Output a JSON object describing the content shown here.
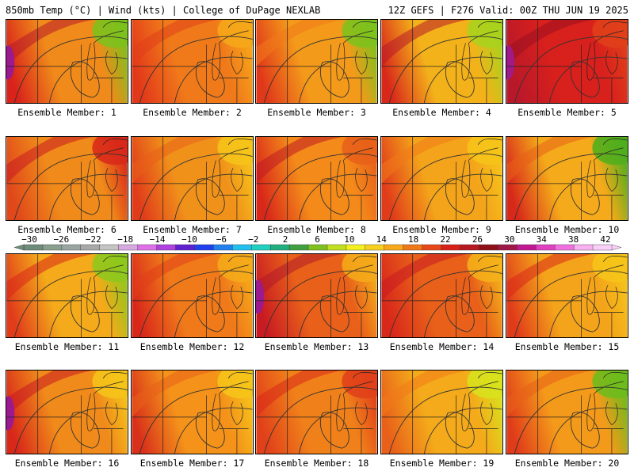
{
  "header": {
    "left": "850mb Temp (°C) | Wind (kts) | College of DuPage NEXLAB",
    "right": "12Z GEFS | F276 Valid: 00Z THU JUN 19 2025"
  },
  "label_prefix": "Ensemble Member: ",
  "members": [
    {
      "label": "Ensemble Member: 1",
      "base": "#f08a1a",
      "west": "#d8221a",
      "ne": "#7cc21c",
      "warm": "#b81a2a",
      "hot": "#9b1a90"
    },
    {
      "label": "Ensemble Member: 2",
      "base": "#f07a1a",
      "west": "#e2381a",
      "ne": "#f6a81a",
      "warm": "#e0401a",
      "hot": ""
    },
    {
      "label": "Ensemble Member: 3",
      "base": "#f49a1a",
      "west": "#e0381a",
      "ne": "#7cc21c",
      "warm": "#f07a1a",
      "hot": ""
    },
    {
      "label": "Ensemble Member: 4",
      "base": "#f4b21a",
      "west": "#d8281a",
      "ne": "#a8d21c",
      "warm": "#b81a2a",
      "hot": ""
    },
    {
      "label": "Ensemble Member: 5",
      "base": "#d8201c",
      "west": "#b8182a",
      "ne": "#e0401a",
      "warm": "#9a1020",
      "hot": "#a01a88"
    },
    {
      "label": "Ensemble Member: 6",
      "base": "#f08a1a",
      "west": "#e0481a",
      "ne": "#d8281a",
      "warm": "#c81a22",
      "hot": ""
    },
    {
      "label": "Ensemble Member: 7",
      "base": "#f0921a",
      "west": "#e03c1a",
      "ne": "#f6c41a",
      "warm": "#e8601a",
      "hot": ""
    },
    {
      "label": "Ensemble Member: 8",
      "base": "#f48a1a",
      "west": "#d8281a",
      "ne": "#e8601a",
      "warm": "#c01a22",
      "hot": ""
    },
    {
      "label": "Ensemble Member: 9",
      "base": "#f4a41a",
      "west": "#e03c1a",
      "ne": "#f6c41a",
      "warm": "#f07a1a",
      "hot": ""
    },
    {
      "label": "Ensemble Member: 10",
      "base": "#f4aa1a",
      "west": "#d8281a",
      "ne": "#4fae1c",
      "warm": "#e8601a",
      "hot": ""
    },
    {
      "label": "Ensemble Member: 11",
      "base": "#f4aa1a",
      "west": "#e03c1a",
      "ne": "#8ec81c",
      "warm": "#d8281a",
      "hot": ""
    },
    {
      "label": "Ensemble Member: 12",
      "base": "#f07a1a",
      "west": "#d8281a",
      "ne": "#f4aa1a",
      "warm": "#e0401a",
      "hot": ""
    },
    {
      "label": "Ensemble Member: 13",
      "base": "#e8601a",
      "west": "#c81a22",
      "ne": "#f4aa1a",
      "warm": "#b01a2a",
      "hot": "#9b1a90"
    },
    {
      "label": "Ensemble Member: 14",
      "base": "#e8601a",
      "west": "#d8281a",
      "ne": "#f4b21a",
      "warm": "#c81a22",
      "hot": ""
    },
    {
      "label": "Ensemble Member: 15",
      "base": "#f4a41a",
      "west": "#e03c1a",
      "ne": "#f6c41a",
      "warm": "#d8281a",
      "hot": ""
    },
    {
      "label": "Ensemble Member: 16",
      "base": "#f08a1a",
      "west": "#d8281a",
      "ne": "#f6c41a",
      "warm": "#c81a22",
      "hot": "#9b1a90"
    },
    {
      "label": "Ensemble Member: 17",
      "base": "#f4921a",
      "west": "#d8301a",
      "ne": "#f6c41a",
      "warm": "#e8601a",
      "hot": ""
    },
    {
      "label": "Ensemble Member: 18",
      "base": "#f0801a",
      "west": "#e0401a",
      "ne": "#e0401a",
      "warm": "#d8281a",
      "hot": ""
    },
    {
      "label": "Ensemble Member: 19",
      "base": "#f4aa1a",
      "west": "#e8601a",
      "ne": "#d8e21c",
      "warm": "#f07a1a",
      "hot": ""
    },
    {
      "label": "Ensemble Member: 20",
      "base": "#f49a1a",
      "west": "#e03c1a",
      "ne": "#6cbc1c",
      "warm": "#e8601a",
      "hot": ""
    }
  ],
  "color_scale": {
    "ticks": [
      "−30",
      "−26",
      "−22",
      "−18",
      "−14",
      "−10",
      "−6",
      "−2",
      "2",
      "6",
      "10",
      "14",
      "18",
      "22",
      "26",
      "30",
      "34",
      "38",
      "42"
    ],
    "colors": [
      "#6f8c7a",
      "#8aa08e",
      "#9aa5a2",
      "#a8a8a8",
      "#c4c4c4",
      "#d8a8e0",
      "#e070e8",
      "#b040e0",
      "#6020d0",
      "#2040f0",
      "#2080f0",
      "#20c0f0",
      "#20d0c0",
      "#20b080",
      "#40a040",
      "#80c020",
      "#c0e020",
      "#f4f020",
      "#f8d020",
      "#f8a818",
      "#f07818",
      "#e84818",
      "#d82018",
      "#b81820",
      "#901018",
      "#a01848",
      "#c01890",
      "#e040c0",
      "#f070e0",
      "#f8b0f0",
      "#f8d0f8"
    ]
  }
}
